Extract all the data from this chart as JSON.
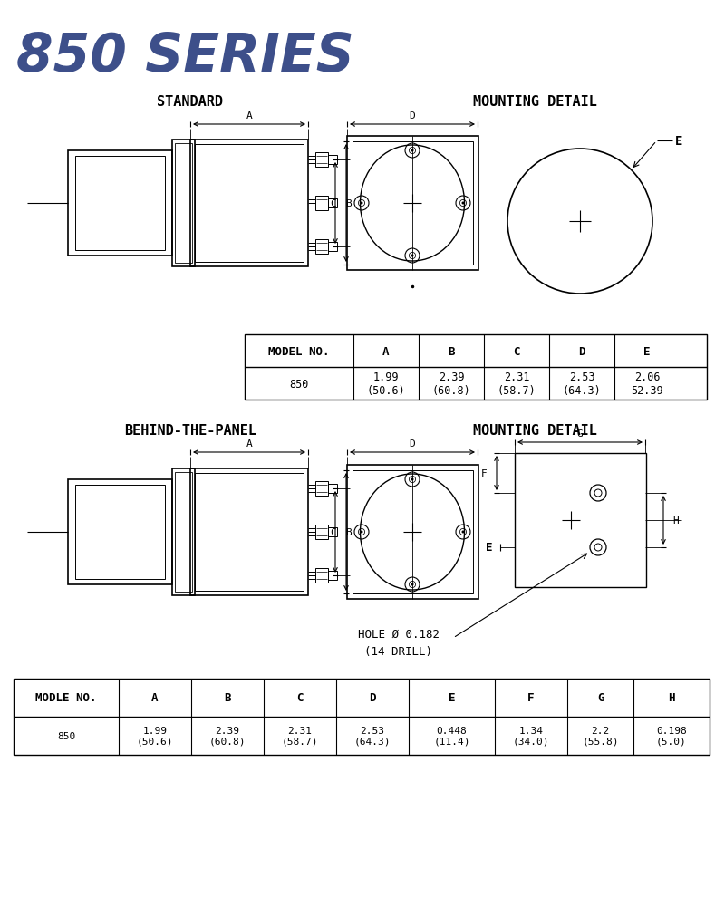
{
  "title": "850 SERIES",
  "title_color": "#3d4f8a",
  "bg_color": "#ffffff",
  "section1_label": "STANDARD",
  "section2_label": "MOUNTING DETAIL",
  "section3_label": "BEHIND-THE-PANEL",
  "section4_label": "MOUNTING DETAIL",
  "table1_headers": [
    "MODEL NO.",
    "A",
    "B",
    "C",
    "D",
    "E"
  ],
  "table1_row": [
    "850",
    "1.99\n(50.6)",
    "2.39\n(60.8)",
    "2.31\n(58.7)",
    "2.53\n(64.3)",
    "2.06\n52.39"
  ],
  "table2_headers": [
    "MODLE NO.",
    "A",
    "B",
    "C",
    "D",
    "E",
    "F",
    "G",
    "H"
  ],
  "table2_row": [
    "850",
    "1.99\n(50.6)",
    "2.39\n(60.8)",
    "2.31\n(58.7)",
    "2.53\n(64.3)",
    "0.448\n(11.4)",
    "1.34\n(34.0)",
    "2.2\n(55.8)",
    "0.198\n(5.0)"
  ]
}
